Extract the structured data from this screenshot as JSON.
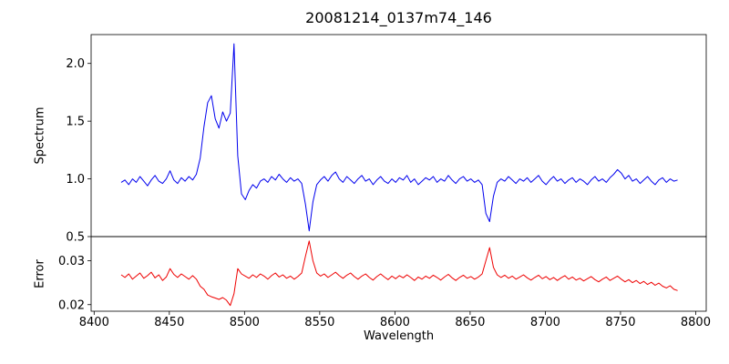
{
  "chart_data": {
    "type": "line",
    "title": "20081214_0137m74_146",
    "xlabel": "Wavelength",
    "x_start": 8418,
    "x_step": 2.5,
    "xlim": [
      8398,
      8807
    ],
    "grid": false,
    "legend": "none",
    "x_ticks": [
      {
        "v": 8400,
        "label": "8400"
      },
      {
        "v": 8450,
        "label": "8450"
      },
      {
        "v": 8500,
        "label": "8500"
      },
      {
        "v": 8550,
        "label": "8550"
      },
      {
        "v": 8600,
        "label": "8600"
      },
      {
        "v": 8650,
        "label": "8650"
      },
      {
        "v": 8700,
        "label": "8700"
      },
      {
        "v": 8750,
        "label": "8750"
      },
      {
        "v": 8800,
        "label": "8800"
      }
    ],
    "panels": [
      {
        "name": "spectrum",
        "ylabel": "Spectrum",
        "color": "#0000ee",
        "ylim": [
          0.5,
          2.25
        ],
        "y_ticks": [
          {
            "v": 0.5,
            "label": "0.5"
          },
          {
            "v": 1.0,
            "label": "1.0"
          },
          {
            "v": 1.5,
            "label": "1.5"
          },
          {
            "v": 2.0,
            "label": "2.0"
          }
        ],
        "values": [
          0.97,
          0.99,
          0.95,
          1.0,
          0.97,
          1.02,
          0.98,
          0.94,
          0.99,
          1.03,
          0.98,
          0.96,
          1.0,
          1.07,
          0.99,
          0.96,
          1.01,
          0.98,
          1.02,
          0.99,
          1.04,
          1.18,
          1.45,
          1.66,
          1.72,
          1.52,
          1.44,
          1.58,
          1.5,
          1.57,
          2.17,
          1.2,
          0.87,
          0.82,
          0.9,
          0.95,
          0.92,
          0.98,
          1.0,
          0.97,
          1.02,
          0.99,
          1.04,
          1.0,
          0.97,
          1.01,
          0.98,
          1.0,
          0.96,
          0.78,
          0.55,
          0.8,
          0.95,
          0.99,
          1.02,
          0.98,
          1.03,
          1.06,
          1.0,
          0.97,
          1.02,
          0.99,
          0.96,
          1.0,
          1.03,
          0.98,
          1.0,
          0.95,
          0.99,
          1.02,
          0.98,
          0.96,
          1.0,
          0.97,
          1.01,
          0.99,
          1.03,
          0.97,
          1.0,
          0.95,
          0.98,
          1.01,
          0.99,
          1.02,
          0.97,
          1.0,
          0.98,
          1.03,
          0.99,
          0.96,
          1.0,
          1.02,
          0.98,
          1.0,
          0.97,
          0.99,
          0.95,
          0.7,
          0.63,
          0.85,
          0.97,
          1.0,
          0.98,
          1.02,
          0.99,
          0.96,
          1.0,
          0.98,
          1.01,
          0.97,
          1.0,
          1.03,
          0.98,
          0.95,
          0.99,
          1.02,
          0.98,
          1.0,
          0.96,
          0.99,
          1.01,
          0.97,
          1.0,
          0.98,
          0.95,
          0.99,
          1.02,
          0.98,
          1.0,
          0.97,
          1.01,
          1.04,
          1.08,
          1.05,
          1.0,
          1.03,
          0.98,
          1.0,
          0.96,
          0.99,
          1.02,
          0.98,
          0.95,
          0.99,
          1.01,
          0.97,
          1.0,
          0.98,
          0.99
        ]
      },
      {
        "name": "error",
        "ylabel": "Error",
        "color": "#ee0000",
        "ylim": [
          0.0185,
          0.0355
        ],
        "y_ticks": [
          {
            "v": 0.02,
            "label": "0.02"
          },
          {
            "v": 0.03,
            "label": "0.03"
          }
        ],
        "values": [
          0.0268,
          0.0262,
          0.027,
          0.0258,
          0.0265,
          0.0272,
          0.026,
          0.0266,
          0.0274,
          0.0261,
          0.0268,
          0.0255,
          0.0263,
          0.0282,
          0.0269,
          0.0262,
          0.027,
          0.0264,
          0.0258,
          0.0266,
          0.0258,
          0.0242,
          0.0235,
          0.0222,
          0.0218,
          0.0215,
          0.0212,
          0.0216,
          0.021,
          0.0198,
          0.0225,
          0.0282,
          0.027,
          0.0265,
          0.026,
          0.0268,
          0.0262,
          0.027,
          0.0265,
          0.0258,
          0.0266,
          0.0272,
          0.0263,
          0.0268,
          0.026,
          0.0265,
          0.0258,
          0.0264,
          0.0272,
          0.031,
          0.0345,
          0.03,
          0.0272,
          0.0265,
          0.027,
          0.0262,
          0.0268,
          0.0274,
          0.0266,
          0.026,
          0.0267,
          0.0272,
          0.0264,
          0.0258,
          0.0265,
          0.027,
          0.0262,
          0.0256,
          0.0264,
          0.027,
          0.0263,
          0.0257,
          0.0265,
          0.0259,
          0.0266,
          0.0261,
          0.0268,
          0.0262,
          0.0255,
          0.0263,
          0.0258,
          0.0265,
          0.026,
          0.0267,
          0.0262,
          0.0256,
          0.0263,
          0.0269,
          0.0261,
          0.0255,
          0.0262,
          0.0267,
          0.026,
          0.0264,
          0.0258,
          0.0263,
          0.027,
          0.03,
          0.033,
          0.0285,
          0.0268,
          0.0262,
          0.0267,
          0.026,
          0.0265,
          0.0258,
          0.0263,
          0.0268,
          0.0261,
          0.0256,
          0.0262,
          0.0267,
          0.0259,
          0.0264,
          0.0257,
          0.0262,
          0.0255,
          0.0261,
          0.0266,
          0.0258,
          0.0263,
          0.0256,
          0.026,
          0.0254,
          0.0259,
          0.0264,
          0.0257,
          0.0252,
          0.0258,
          0.0263,
          0.0255,
          0.026,
          0.0265,
          0.0258,
          0.0252,
          0.0257,
          0.025,
          0.0255,
          0.0248,
          0.0253,
          0.0246,
          0.0251,
          0.0244,
          0.0249,
          0.0242,
          0.0238,
          0.0243,
          0.0235,
          0.0232
        ]
      }
    ]
  }
}
